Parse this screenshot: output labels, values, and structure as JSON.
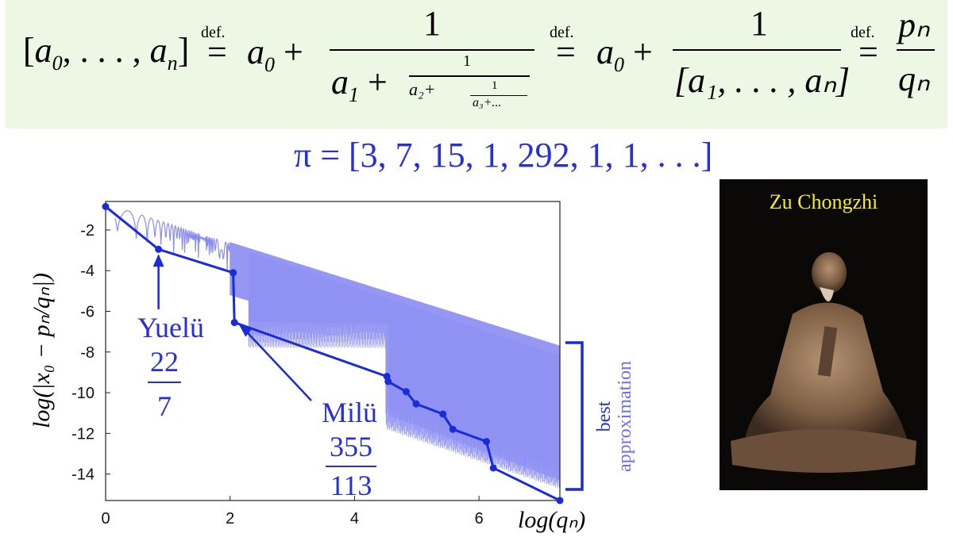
{
  "formula": {
    "lhs_open": "[",
    "lhs_a0": "a",
    "lhs_sub0": "0",
    "lhs_sep": ", . . . , ",
    "lhs_an": "a",
    "lhs_subn": "n",
    "lhs_close": "]",
    "def": "def.",
    "term_a0": "a",
    "term_sub0": "0",
    "plus": "+",
    "one": "1",
    "cf_denom_a1": "a",
    "cf_denom_sub1": "1",
    "cf_inner_num": "1",
    "cf_inner_den": "a₂+",
    "cf_inner_num2": "1",
    "cf_inner_den2": "a₃+...",
    "bracket_denom": "[a₁, . . . , aₙ]",
    "p_n": "pₙ",
    "q_n": "qₙ"
  },
  "pi_expansion": "π = [3, 7, 15, 1, 292, 1, 1, . . .]",
  "portrait": {
    "title": "Zu Chongzhi"
  },
  "chart_data": {
    "type": "line",
    "title": "",
    "xlabel": "log(qₙ)",
    "ylabel": "log(|x₀ − pₙ/qₙ|)",
    "xlim": [
      0,
      7.3
    ],
    "ylim": [
      -15.3,
      -0.6
    ],
    "x_ticks": [
      0,
      2,
      4,
      6
    ],
    "y_ticks": [
      -2,
      -4,
      -6,
      -8,
      -10,
      -12,
      -14
    ],
    "series": [
      {
        "name": "best approximation",
        "x": [
          0,
          0.85,
          2.05,
          2.07,
          4.52,
          4.54,
          4.83,
          4.99,
          5.42,
          5.58,
          6.12,
          6.23,
          7.3
        ],
        "y": [
          -0.85,
          -2.95,
          -4.1,
          -6.55,
          -9.2,
          -9.45,
          -9.95,
          -10.55,
          -11.05,
          -11.8,
          -12.4,
          -13.7,
          -15.3
        ]
      }
    ],
    "annotations": [
      {
        "label": "Yuelü",
        "num": "22",
        "den": "7",
        "x": 0.85,
        "y": -2.95
      },
      {
        "label": "Milü",
        "num": "355",
        "den": "113",
        "x": 2.07,
        "y": -6.55
      }
    ],
    "bracket_label": [
      "best",
      "approximation"
    ],
    "colors": {
      "dense": "#8a8cf2",
      "line": "#1a2bd9"
    }
  }
}
